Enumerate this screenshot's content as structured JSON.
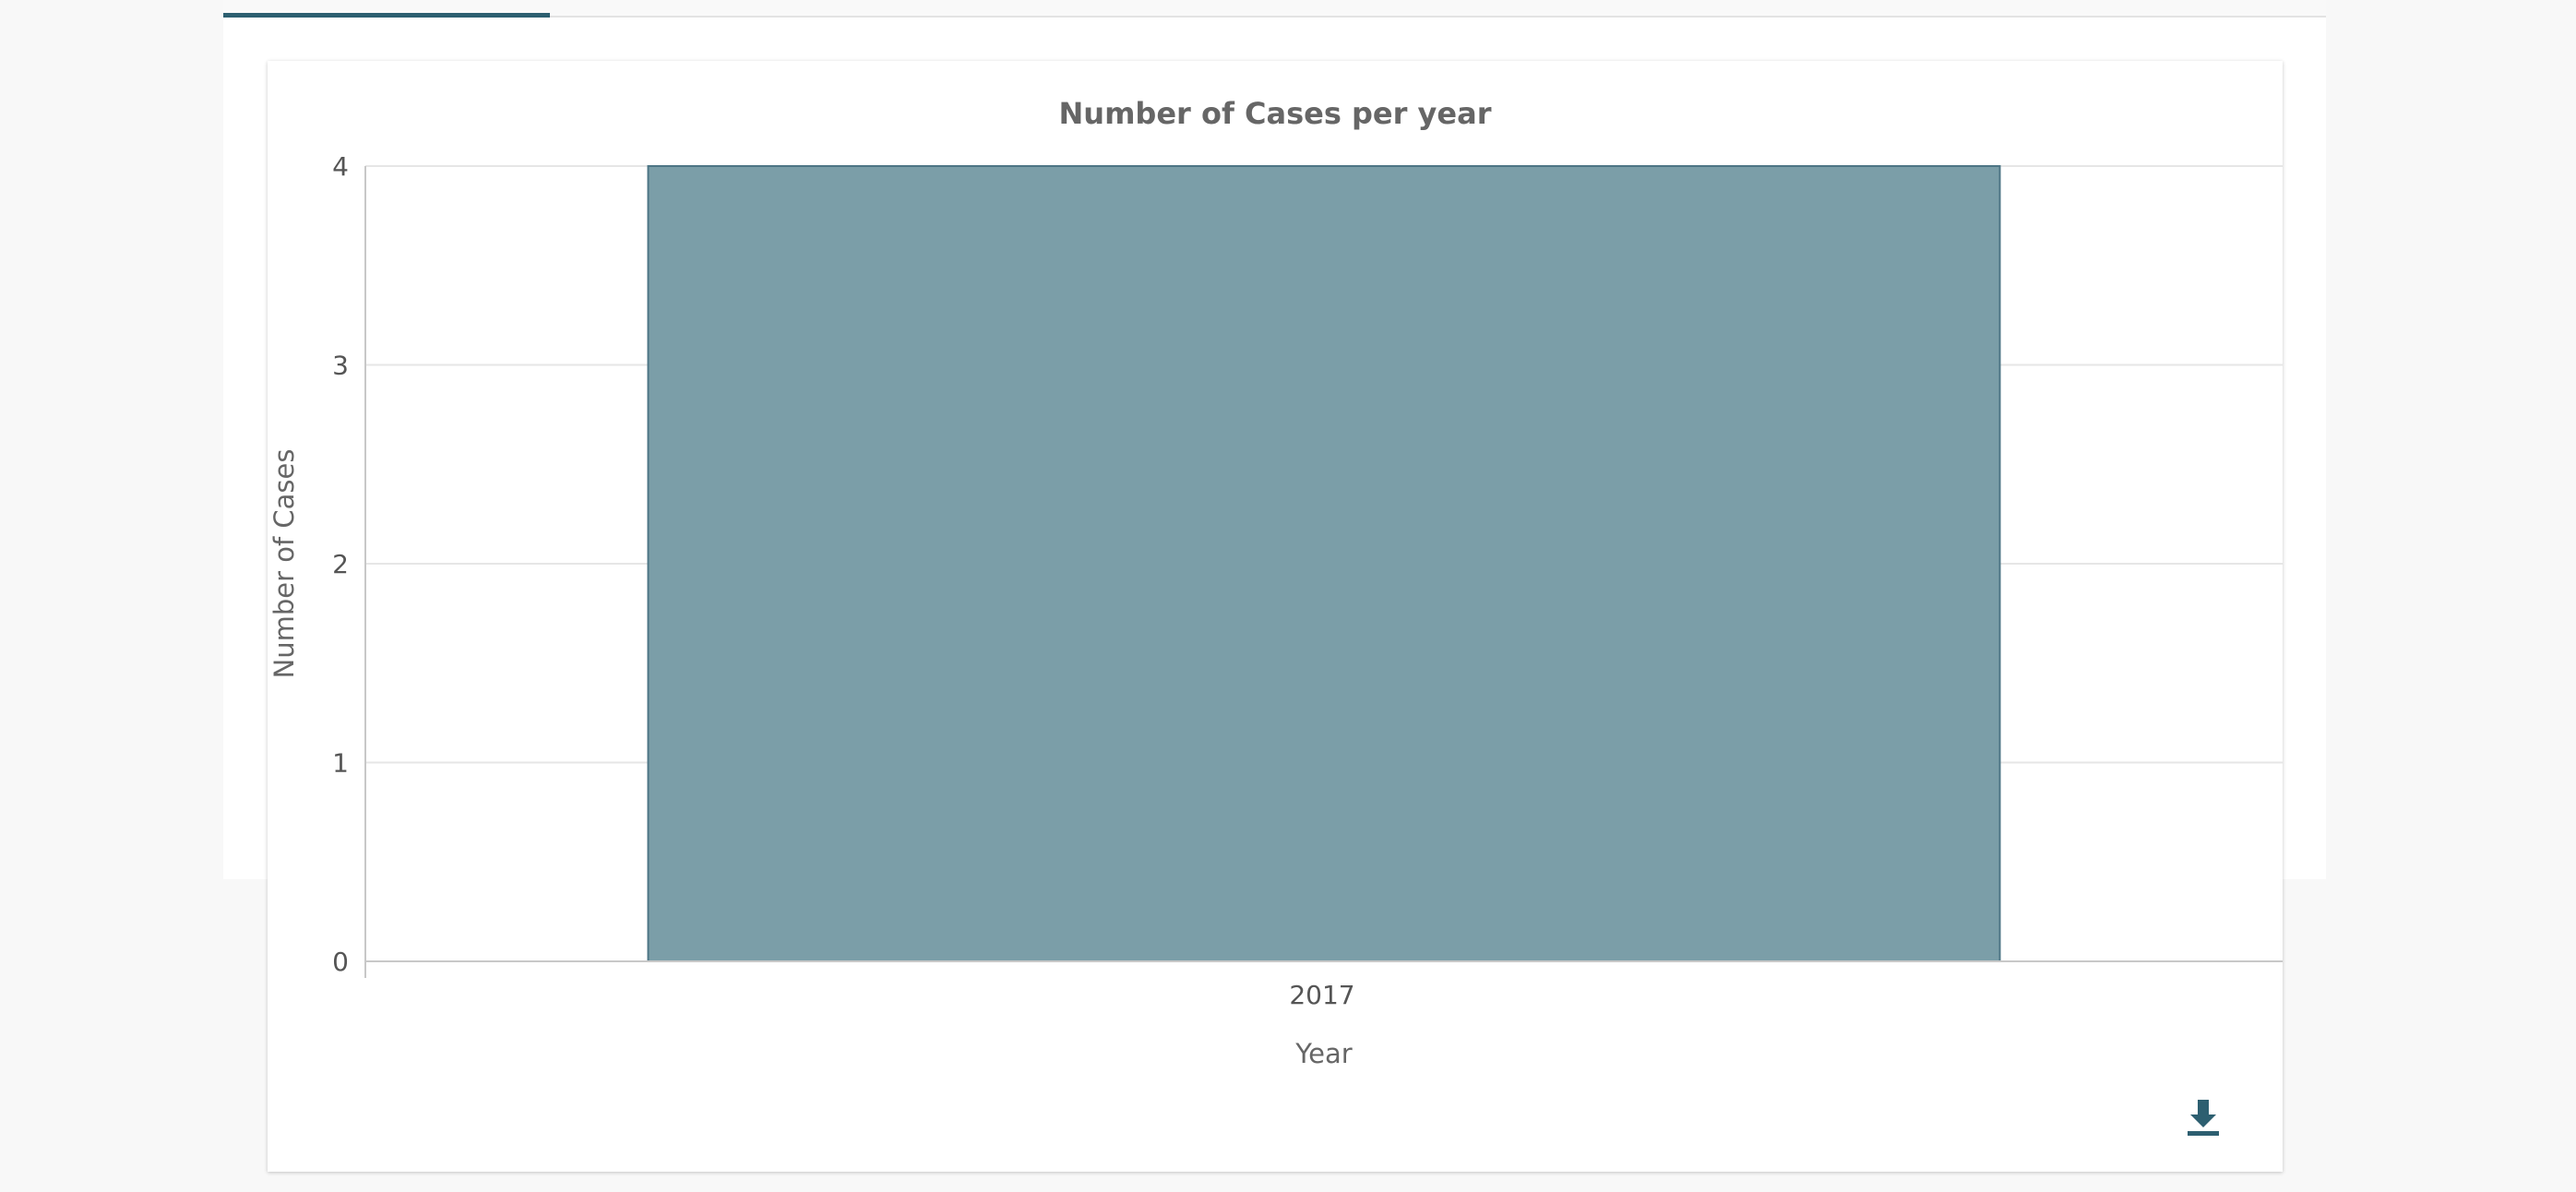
{
  "toolbar": {
    "download_icon": "download-icon"
  },
  "colors": {
    "bar_fill": "#7b9ea8",
    "bar_stroke": "#4d7585",
    "accent": "#2d5f70"
  },
  "chart_data": {
    "type": "bar",
    "title": "Number of Cases per year",
    "xlabel": "Year",
    "ylabel": "Number of Cases",
    "categories": [
      "2017"
    ],
    "values": [
      4
    ],
    "ylim": [
      0,
      4
    ],
    "yticks": [
      "0",
      "1",
      "2",
      "3",
      "4"
    ],
    "grid": true,
    "legend": "none"
  }
}
